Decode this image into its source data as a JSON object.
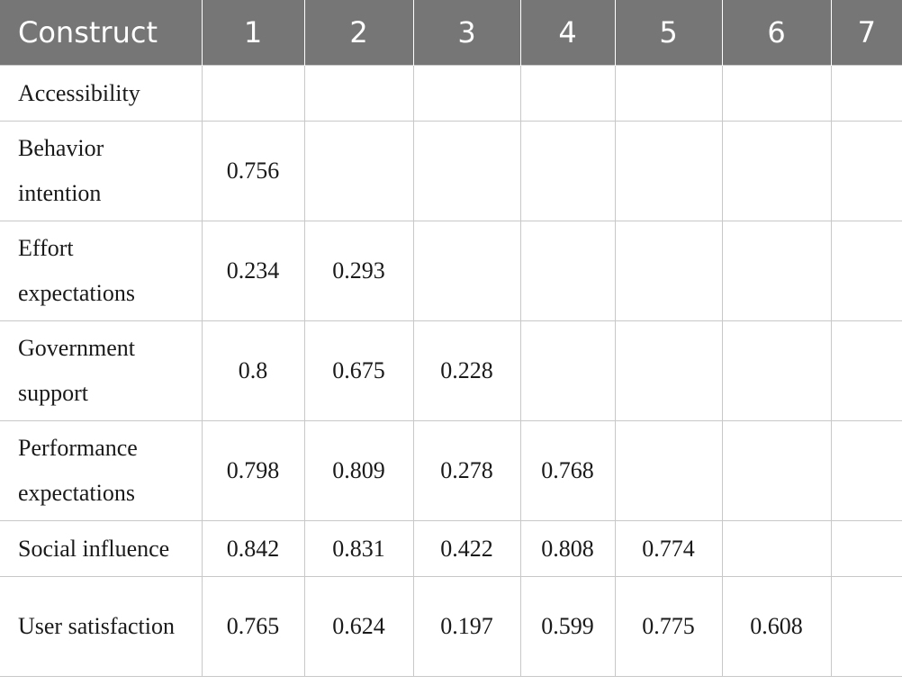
{
  "headers": [
    "Construct",
    "1",
    "2",
    "3",
    "4",
    "5",
    "6",
    "7"
  ],
  "rows": [
    {
      "label": "Accessibility",
      "values": [
        "",
        "",
        "",
        "",
        "",
        "",
        ""
      ]
    },
    {
      "label": "Behavior intention",
      "values": [
        "0.756",
        "",
        "",
        "",
        "",
        "",
        ""
      ]
    },
    {
      "label": "Effort expectations",
      "values": [
        "0.234",
        "0.293",
        "",
        "",
        "",
        "",
        ""
      ]
    },
    {
      "label": "Government support",
      "values": [
        "0.8",
        "0.675",
        "0.228",
        "",
        "",
        "",
        ""
      ]
    },
    {
      "label": "Performance expectations",
      "values": [
        "0.798",
        "0.809",
        "0.278",
        "0.768",
        "",
        "",
        ""
      ]
    },
    {
      "label": "Social influence",
      "values": [
        "0.842",
        "0.831",
        "0.422",
        "0.808",
        "0.774",
        "",
        ""
      ]
    },
    {
      "label": "User satisfaction",
      "values": [
        "0.765",
        "0.624",
        "0.197",
        "0.599",
        "0.775",
        "0.608",
        ""
      ]
    }
  ]
}
